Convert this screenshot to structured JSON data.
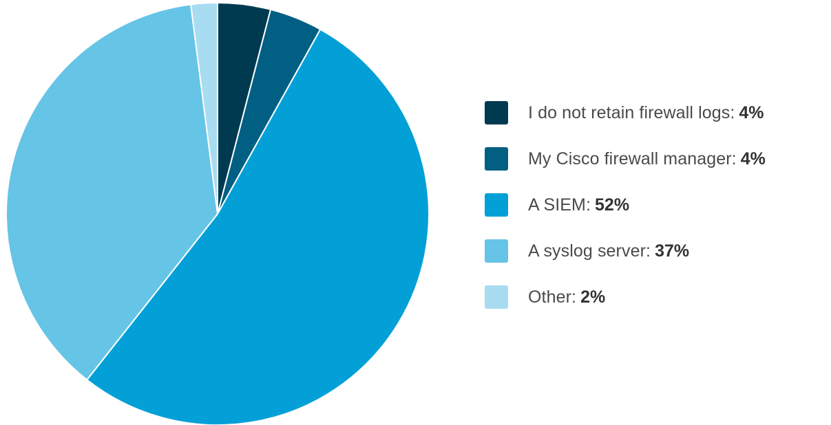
{
  "chart_data": {
    "type": "pie",
    "title": "",
    "legend_position": "right",
    "slices": [
      {
        "label": "I do not retain firewall logs:",
        "value": 4,
        "value_label": "4%",
        "color": "#003a51"
      },
      {
        "label": "My Cisco firewall manager:",
        "value": 4,
        "value_label": "4%",
        "color": "#005f82"
      },
      {
        "label": "A SIEM:",
        "value": 52,
        "value_label": "52%",
        "color": "#03a0d8"
      },
      {
        "label": "A syslog server:",
        "value": 37,
        "value_label": "37%",
        "color": "#66c4e6"
      },
      {
        "label": "Other:",
        "value": 2,
        "value_label": "2%",
        "color": "#a8dcf0"
      }
    ]
  }
}
